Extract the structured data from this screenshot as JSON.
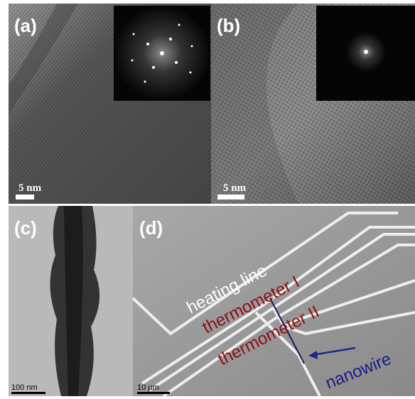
{
  "panels": [
    {
      "label": "(a)",
      "scale_bar": "5 nm"
    },
    {
      "label": "(b)",
      "scale_bar": "5 nm"
    },
    {
      "label": "(c)",
      "scale_bar": "100 nm"
    },
    {
      "label": "(d)",
      "scale_bar": "10 µm",
      "annotations": [
        "heating line",
        "thermometer I",
        "thermometer II",
        "nanowire"
      ]
    }
  ]
}
